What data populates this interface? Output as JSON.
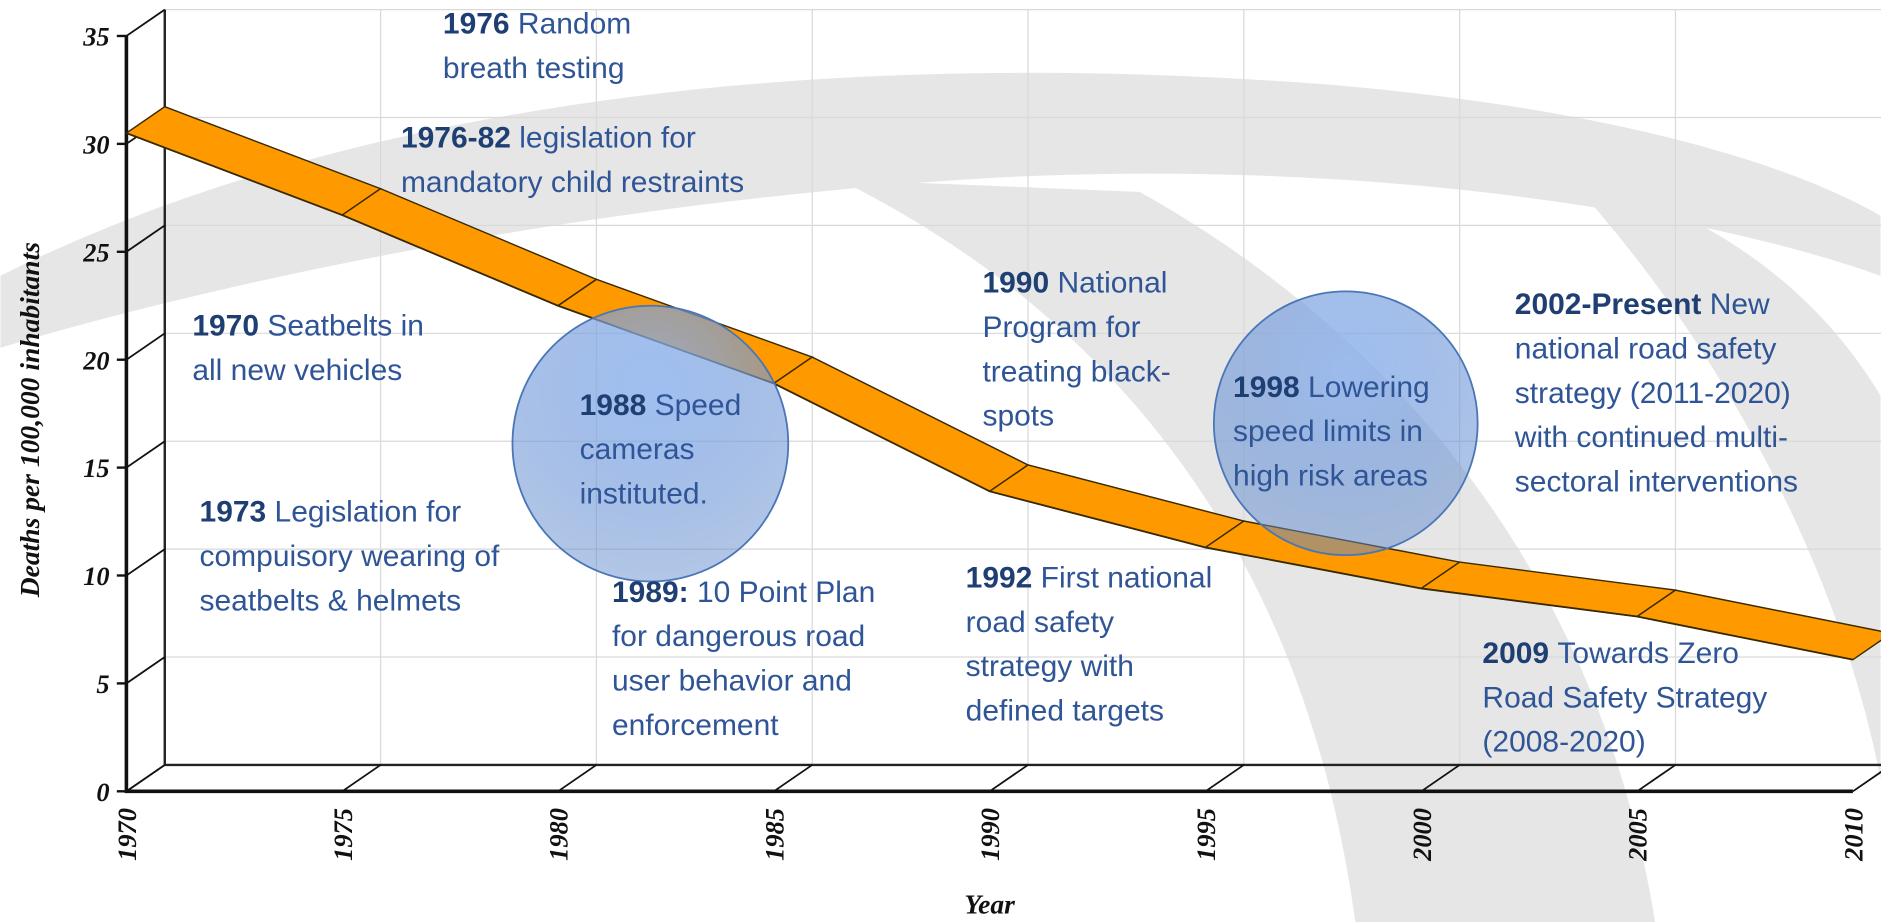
{
  "chart_data": {
    "type": "line",
    "x_label": "Year",
    "y_label": "Deaths per 100,000 inhabitants",
    "x": [
      1970,
      1975,
      1980,
      1985,
      1990,
      1995,
      2000,
      2005,
      2010
    ],
    "values": [
      30.5,
      26.7,
      22.5,
      18.9,
      13.9,
      11.3,
      9.4,
      8.1,
      6.1
    ],
    "color": "#ff9900",
    "xlim": [
      1970,
      2010
    ],
    "xticks": [
      1970,
      1975,
      1980,
      1985,
      1990,
      1995,
      2000,
      2005,
      2010
    ],
    "ylim": [
      0,
      35
    ],
    "yticks": [
      0,
      5,
      10,
      15,
      20,
      25,
      30,
      35
    ],
    "grid": true,
    "annotations": [
      {
        "year": "1976",
        "lines": [
          "Random",
          "breath testing"
        ]
      },
      {
        "year": "1976-82",
        "lines": [
          "legislation for",
          "mandatory child restraints"
        ]
      },
      {
        "year": "1970",
        "lines": [
          "Seatbelts in",
          "all new vehicles"
        ]
      },
      {
        "year": "1973",
        "lines": [
          "Legislation for",
          "compuisory wearing of",
          "seatbelts & helmets"
        ]
      },
      {
        "year": "1988",
        "lines": [
          "Speed",
          "cameras",
          "instituted."
        ]
      },
      {
        "year": "1989:",
        "lines": [
          "10 Point Plan",
          "for dangerous road",
          "user behavior and",
          "enforcement"
        ]
      },
      {
        "year": "1990",
        "lines": [
          "National",
          "Program for",
          "treating black-",
          "spots"
        ]
      },
      {
        "year": "1992",
        "lines": [
          "First national",
          "road safety",
          "strategy with",
          "defined targets"
        ]
      },
      {
        "year": "1998",
        "lines": [
          "Lowering",
          "speed limits in",
          "high risk areas"
        ]
      },
      {
        "year": "2002-Present",
        "lines": [
          "New",
          "national road safety",
          "strategy (2011-2020)",
          "with continued multi-",
          "sectoral interventions"
        ]
      },
      {
        "year": "2009",
        "lines": [
          "Towards Zero",
          "Road Safety Strategy",
          "(2008-2020)"
        ]
      }
    ]
  }
}
